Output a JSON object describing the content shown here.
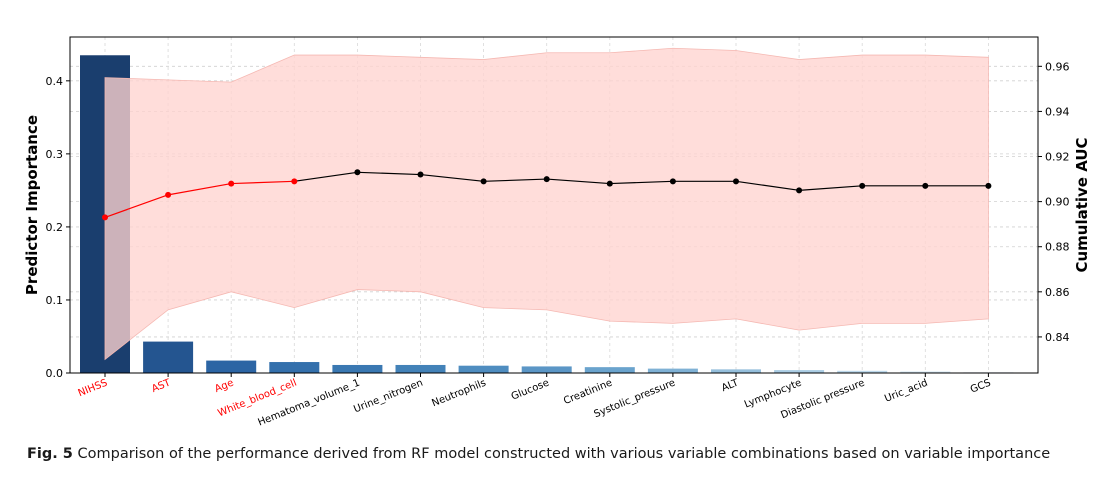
{
  "chart_data": {
    "type": "bar",
    "categories": [
      "NIHSS",
      "AST",
      "Age",
      "White_blood_cell",
      "Hematoma_volume_1",
      "Urine_nitrogen",
      "Neutrophils",
      "Glucose",
      "Creatinine",
      "Systolic_pressure",
      "ALT",
      "Lymphocyte",
      "Diastolic pressure",
      "Uric_acid",
      "GCS"
    ],
    "highlighted_categories": [
      "NIHSS",
      "AST",
      "Age",
      "White_blood_cell"
    ],
    "highlight_color": "#ff0000",
    "series": [
      {
        "type": "bar",
        "axis": "left",
        "values": [
          0.435,
          0.043,
          0.017,
          0.015,
          0.011,
          0.011,
          0.01,
          0.009,
          0.008,
          0.006,
          0.005,
          0.004,
          0.003,
          0.002,
          0.001
        ]
      },
      {
        "type": "line",
        "axis": "right",
        "values": [
          0.893,
          0.903,
          0.908,
          0.909,
          0.913,
          0.912,
          0.909,
          0.91,
          0.908,
          0.909,
          0.909,
          0.905,
          0.907,
          0.907,
          0.907
        ],
        "band_upper": [
          0.955,
          0.954,
          0.953,
          0.965,
          0.965,
          0.964,
          0.963,
          0.966,
          0.966,
          0.968,
          0.967,
          0.963,
          0.965,
          0.965,
          0.964
        ],
        "band_lower": [
          0.83,
          0.852,
          0.86,
          0.853,
          0.861,
          0.86,
          0.853,
          0.852,
          0.847,
          0.846,
          0.848,
          0.843,
          0.846,
          0.846,
          0.848
        ]
      }
    ],
    "ylabel": "Predictor Importance",
    "y2label": "Cumulative AUC",
    "ylim": [
      0,
      0.46
    ],
    "y2lim": [
      0.824,
      0.973
    ],
    "yticks": [
      "0.0",
      "0.1",
      "0.2",
      "0.3",
      "0.4"
    ],
    "y2ticks": [
      "0.84",
      "0.86",
      "0.88",
      "0.90",
      "0.92",
      "0.94",
      "0.96"
    ],
    "grid": true,
    "bar_colors": [
      "#1a3e6e",
      "#245590",
      "#2c65a4",
      "#3470ac",
      "#3a78b2",
      "#4382b8",
      "#4f8dc0",
      "#5b96c6",
      "#6aa3cd",
      "#7fb1d5",
      "#95bfdc",
      "#aacce3",
      "#bcd7ea",
      "#cfe2f0",
      "#dde9f4"
    ],
    "line_color_highlight": "#ff0000",
    "line_color": "#000000",
    "band_color": "#ffd3cf"
  },
  "caption": {
    "label": "Fig. 5",
    "text": "Comparison of the performance derived from RF model constructed with various variable combinations based on variable importance"
  }
}
